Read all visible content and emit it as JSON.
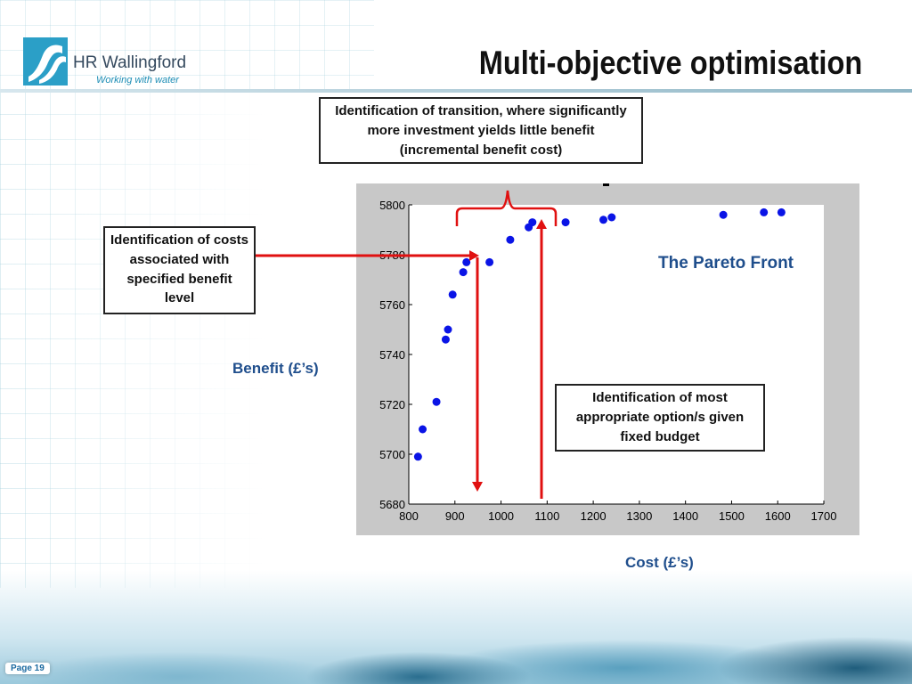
{
  "header": {
    "logo_name": "HR Wallingford",
    "logo_tagline": "Working with water",
    "title": "Multi-objective optimisation"
  },
  "annotations": {
    "top_box": "Identification of transition, where significantly more investment yields little benefit (incremental benefit cost)",
    "left_box": "Identification of costs associated with specified benefit level",
    "right_box": "Identification of most appropriate option/s given fixed budget",
    "pareto_label": "The Pareto Front"
  },
  "axes_labels": {
    "y": "Benefit (£’s)",
    "x": "Cost (£’s)"
  },
  "footer": {
    "page": "Page 19"
  },
  "colors": {
    "points": "#0a14e6",
    "arrows": "#e01010",
    "label_blue": "#1f4e8c",
    "plot_frame": "#c8c8c8"
  },
  "chart_data": {
    "type": "scatter",
    "title": "",
    "xlabel": "Cost (£’s)",
    "ylabel": "Benefit (£’s)",
    "xlim": [
      800,
      1700
    ],
    "ylim": [
      5680,
      5800
    ],
    "xticks": [
      "800",
      "900",
      "1000",
      "1100",
      "1200",
      "1300",
      "1400",
      "1500",
      "1600",
      "1700"
    ],
    "yticks": [
      "5680",
      "5700",
      "5720",
      "5740",
      "5760",
      "5780",
      "5800"
    ],
    "grid": false,
    "series": [
      {
        "x": [
          820,
          830,
          860,
          880,
          885,
          895,
          918,
          925,
          975,
          1020,
          1060,
          1068,
          1140,
          1222,
          1240,
          1482,
          1570,
          1608
        ],
        "y": [
          5699,
          5710,
          5721,
          5746,
          5750,
          5764,
          5773,
          5777,
          5777,
          5786,
          5791,
          5793,
          5793,
          5794,
          5795,
          5796,
          5797,
          5797
        ]
      }
    ]
  }
}
